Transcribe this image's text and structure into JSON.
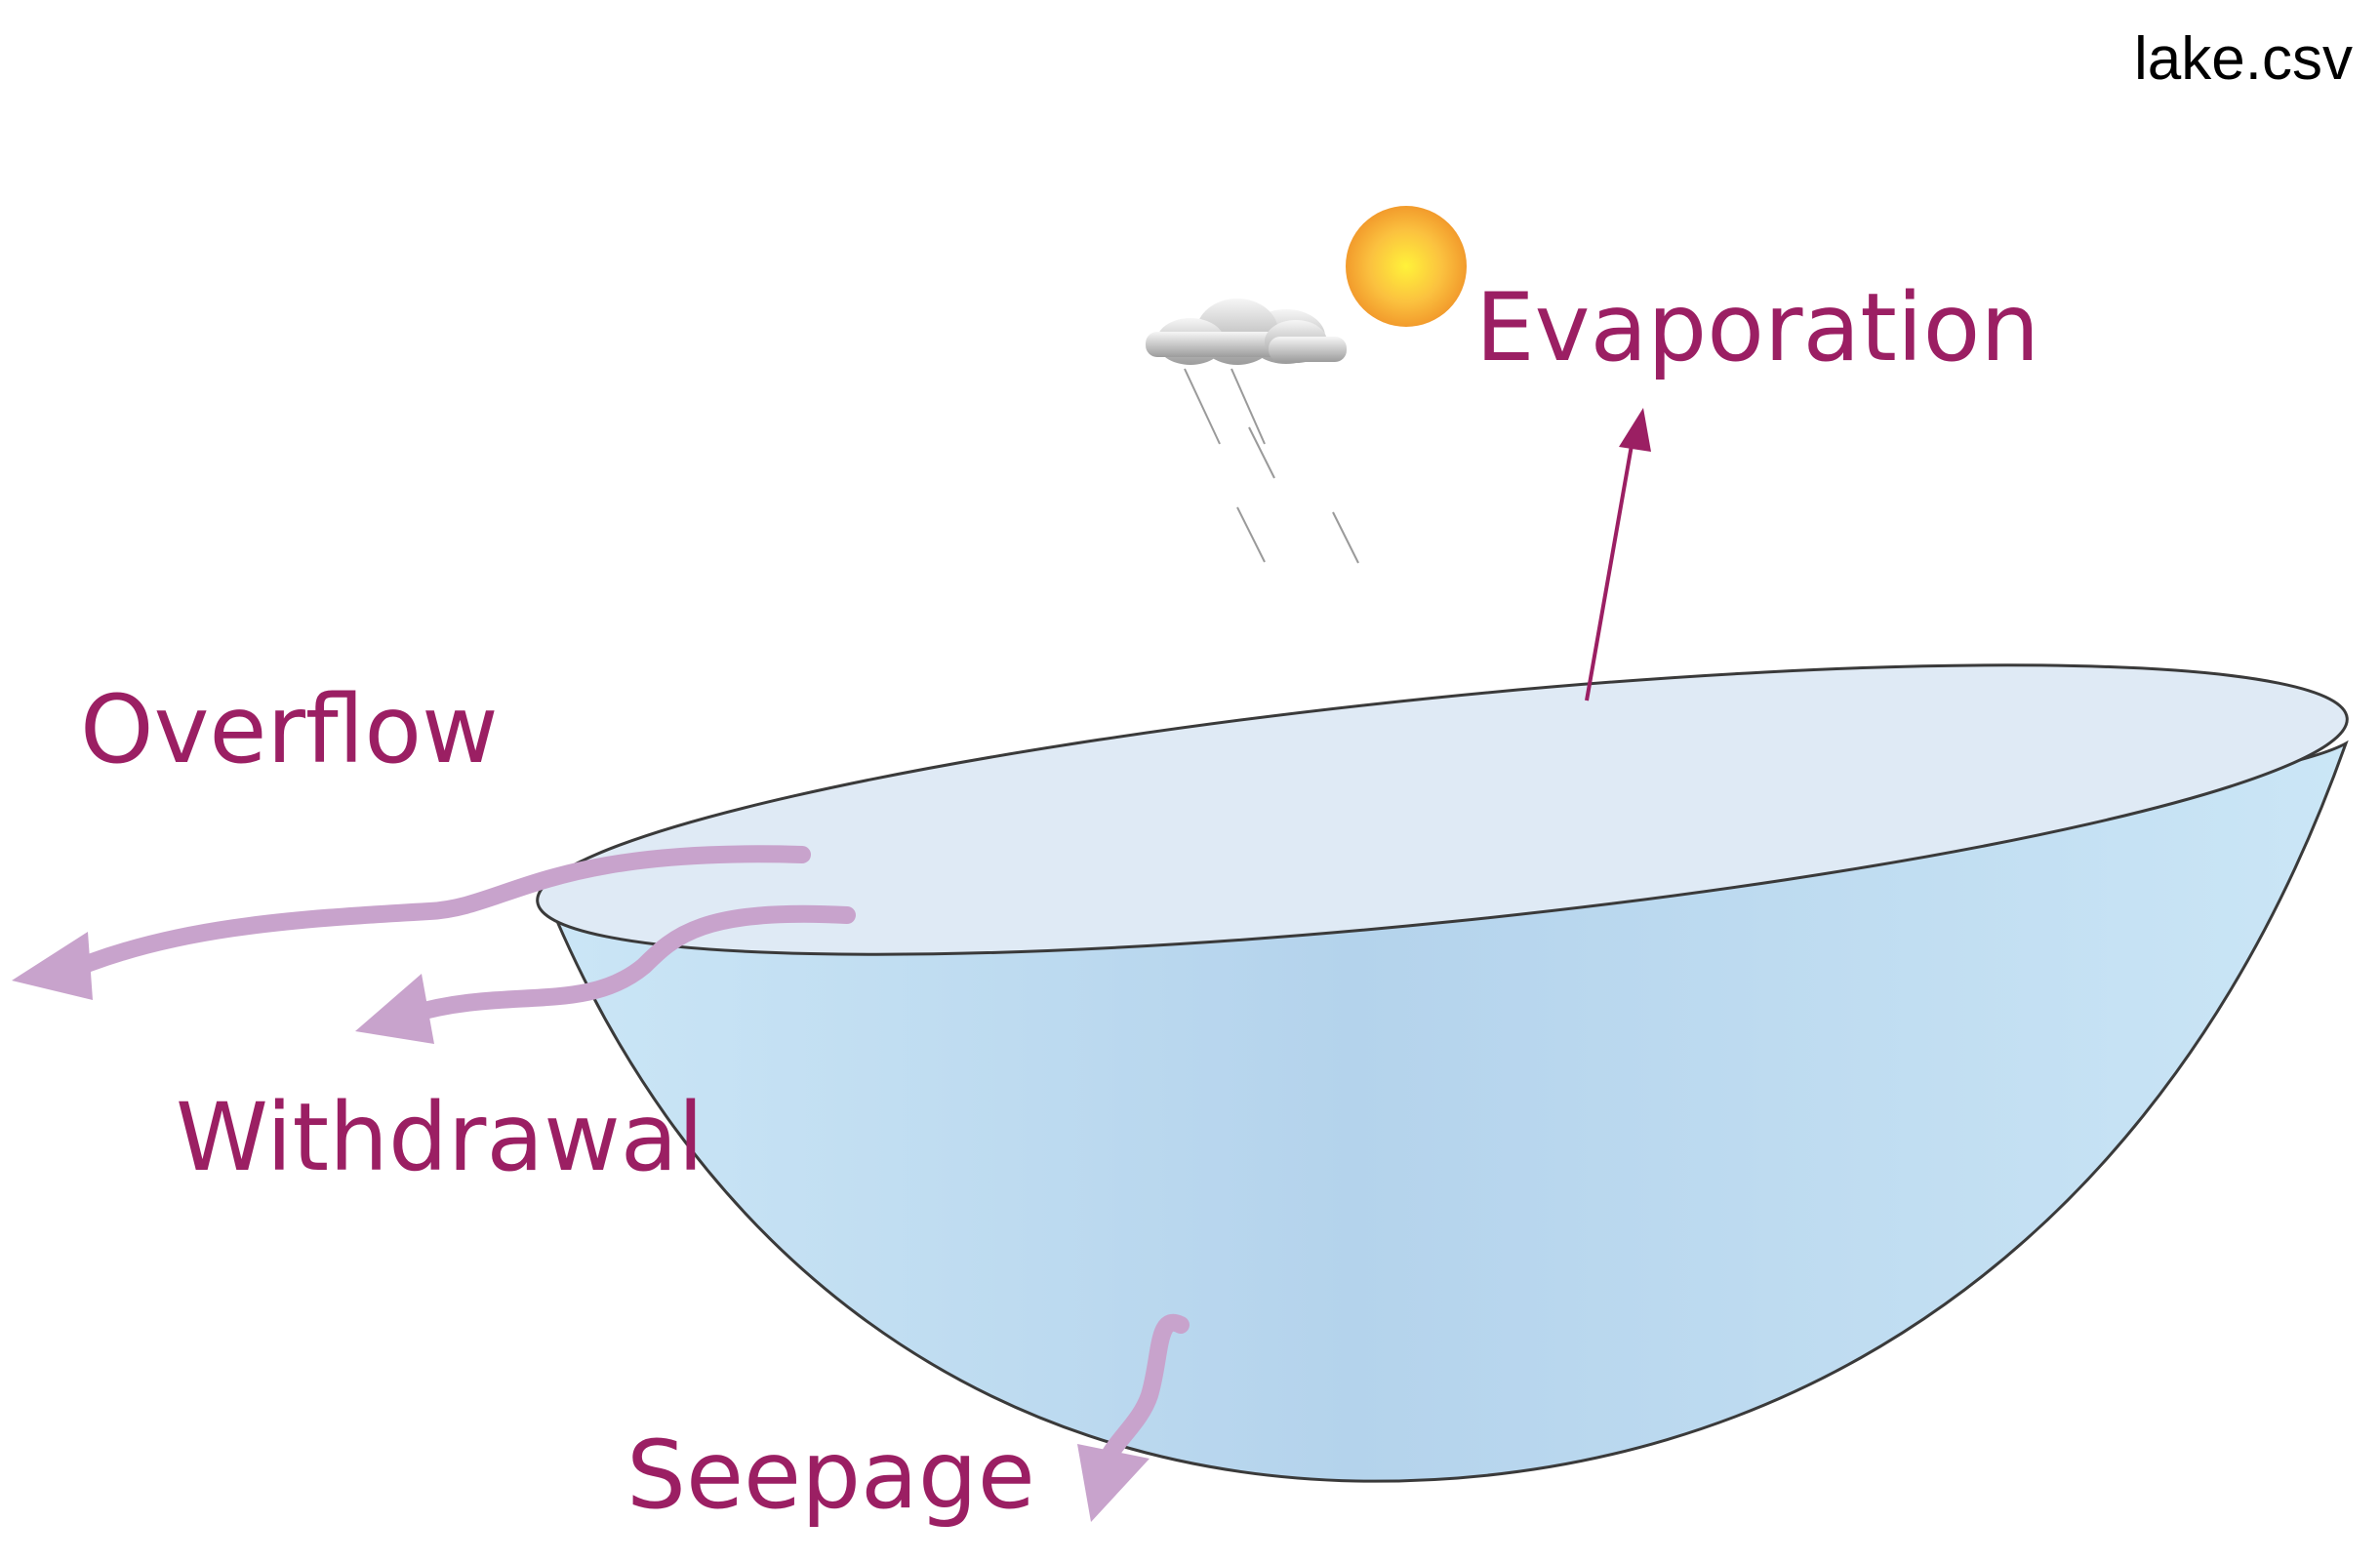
{
  "file_label": "lake.csv",
  "colors": {
    "label": "#9b1f63",
    "flow_arrow": "#c8a3cc",
    "evap_arrow": "#9b1f63",
    "water_surface": "#dfeaf5",
    "water_body": "#c6e1f1",
    "outline": "#3a3a3a",
    "sun": "#f6b23e"
  },
  "labels": {
    "evaporation": "Evaporation",
    "overflow": "Overflow",
    "withdrawal": "Withdrawal",
    "seepage": "Seepage"
  },
  "icons": [
    "sun-icon",
    "cloud-icon",
    "rain-icon"
  ]
}
